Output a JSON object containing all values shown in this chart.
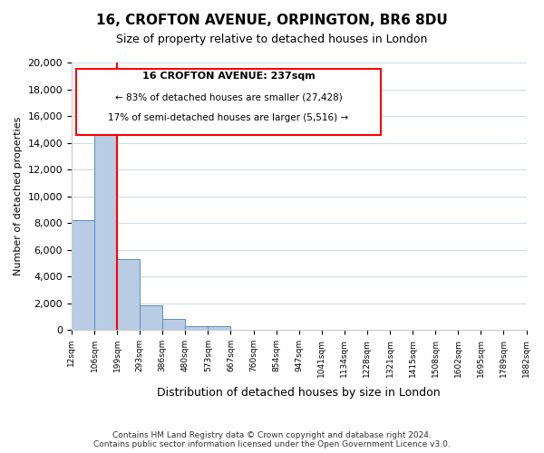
{
  "title": "16, CROFTON AVENUE, ORPINGTON, BR6 8DU",
  "subtitle": "Size of property relative to detached houses in London",
  "xlabel": "Distribution of detached houses by size in London",
  "ylabel": "Number of detached properties",
  "bar_values": [
    8200,
    16500,
    5300,
    1800,
    800,
    300,
    270,
    0,
    0,
    0,
    0,
    0,
    0,
    0,
    0,
    0,
    0,
    0,
    0,
    0
  ],
  "bar_labels": [
    "12sqm",
    "106sqm",
    "199sqm",
    "293sqm",
    "386sqm",
    "480sqm",
    "573sqm",
    "667sqm",
    "760sqm",
    "854sqm",
    "947sqm",
    "1041sqm",
    "1134sqm",
    "1228sqm",
    "1321sqm",
    "1415sqm",
    "1508sqm",
    "1602sqm",
    "1695sqm",
    "1789sqm",
    "1882sqm"
  ],
  "bar_color": "#b8cce4",
  "bar_edge_color": "#5a8fc0",
  "ylim": [
    0,
    20000
  ],
  "yticks": [
    0,
    2000,
    4000,
    6000,
    8000,
    10000,
    12000,
    14000,
    16000,
    18000,
    20000
  ],
  "annotation_title": "16 CROFTON AVENUE: 237sqm",
  "annotation_line1": "← 83% of detached houses are smaller (27,428)",
  "annotation_line2": "17% of semi-detached houses are larger (5,516) →",
  "footer_line1": "Contains HM Land Registry data © Crown copyright and database right 2024.",
  "footer_line2": "Contains public sector information licensed under the Open Government Licence v3.0.",
  "background_color": "#ffffff",
  "grid_color": "#d0dce8"
}
